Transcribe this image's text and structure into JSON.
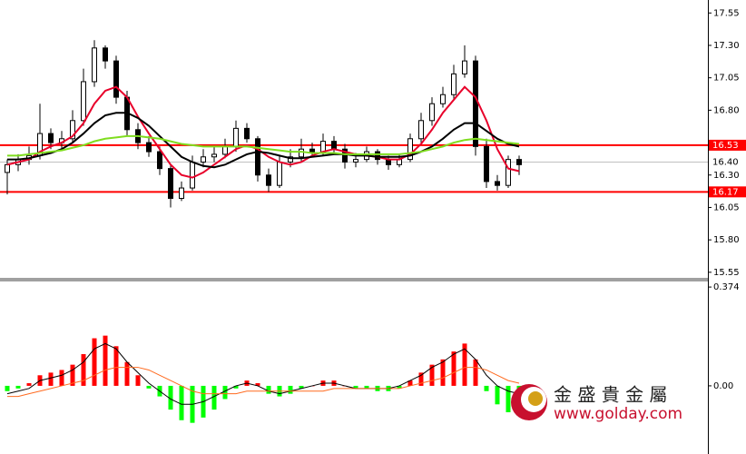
{
  "chart_data": [
    {
      "type": "candlestick",
      "open": [
        16.32,
        16.38,
        16.42,
        16.45,
        16.62,
        16.55,
        16.58,
        16.72,
        17.02,
        17.28,
        17.18,
        16.9,
        16.65,
        16.55,
        16.48,
        16.35,
        16.12,
        16.2,
        16.4,
        16.44,
        16.46,
        16.52,
        16.66,
        16.58,
        16.3,
        16.22,
        16.4,
        16.44,
        16.5,
        16.48,
        16.56,
        16.5,
        16.4,
        16.42,
        16.48,
        16.42,
        16.38,
        16.42,
        16.58,
        16.72,
        16.85,
        16.92,
        17.08,
        17.18,
        16.52,
        16.25,
        16.22,
        16.42
      ],
      "high": [
        16.42,
        16.46,
        16.52,
        16.85,
        16.66,
        16.64,
        16.8,
        17.12,
        17.34,
        17.3,
        17.22,
        16.95,
        16.7,
        16.6,
        16.52,
        16.38,
        16.25,
        16.45,
        16.5,
        16.52,
        16.58,
        16.72,
        16.7,
        16.6,
        16.35,
        16.45,
        16.5,
        16.58,
        16.55,
        16.62,
        16.6,
        16.54,
        16.47,
        16.52,
        16.5,
        16.45,
        16.46,
        16.62,
        16.78,
        16.9,
        16.98,
        17.15,
        17.3,
        17.22,
        16.58,
        16.3,
        16.45,
        16.45
      ],
      "low": [
        16.15,
        16.33,
        16.38,
        16.42,
        16.5,
        16.5,
        16.55,
        16.68,
        16.98,
        17.12,
        16.85,
        16.6,
        16.5,
        16.44,
        16.3,
        16.05,
        16.1,
        16.18,
        16.36,
        16.4,
        16.43,
        16.48,
        16.55,
        16.25,
        16.17,
        16.2,
        16.36,
        16.4,
        16.44,
        16.45,
        16.46,
        16.35,
        16.36,
        16.4,
        16.38,
        16.34,
        16.36,
        16.4,
        16.55,
        16.68,
        16.82,
        16.88,
        17.05,
        16.45,
        16.2,
        16.18,
        16.2,
        16.3
      ],
      "close": [
        16.38,
        16.42,
        16.45,
        16.62,
        16.55,
        16.58,
        16.72,
        17.02,
        17.28,
        17.18,
        16.9,
        16.65,
        16.55,
        16.48,
        16.35,
        16.12,
        16.2,
        16.4,
        16.44,
        16.46,
        16.52,
        16.66,
        16.58,
        16.3,
        16.22,
        16.4,
        16.44,
        16.5,
        16.48,
        16.56,
        16.5,
        16.4,
        16.42,
        16.48,
        16.42,
        16.38,
        16.42,
        16.58,
        16.72,
        16.85,
        16.92,
        17.08,
        17.18,
        16.52,
        16.25,
        16.22,
        16.42,
        16.38
      ],
      "up_color": "#ffffff",
      "down_color": "#000000",
      "outline_color": "#000000",
      "series": [
        {
          "color": "#e8002a",
          "values": [
            16.38,
            16.4,
            16.42,
            16.48,
            16.52,
            16.55,
            16.6,
            16.7,
            16.85,
            16.95,
            16.98,
            16.9,
            16.75,
            16.62,
            16.5,
            16.38,
            16.3,
            16.28,
            16.32,
            16.38,
            16.44,
            16.5,
            16.53,
            16.5,
            16.44,
            16.4,
            16.38,
            16.4,
            16.45,
            16.48,
            16.5,
            16.48,
            16.46,
            16.45,
            16.44,
            16.42,
            16.42,
            16.46,
            16.54,
            16.65,
            16.78,
            16.88,
            16.98,
            16.9,
            16.72,
            16.5,
            16.35,
            16.33
          ]
        },
        {
          "color": "#000000",
          "values": [
            16.42,
            16.42,
            16.43,
            16.45,
            16.47,
            16.5,
            16.55,
            16.62,
            16.7,
            16.76,
            16.78,
            16.78,
            16.74,
            16.68,
            16.6,
            16.52,
            16.44,
            16.4,
            16.37,
            16.36,
            16.38,
            16.42,
            16.46,
            16.48,
            16.47,
            16.45,
            16.43,
            16.43,
            16.44,
            16.45,
            16.46,
            16.46,
            16.45,
            16.45,
            16.44,
            16.44,
            16.44,
            16.45,
            16.48,
            16.52,
            16.58,
            16.65,
            16.7,
            16.7,
            16.64,
            16.58,
            16.54,
            16.52
          ]
        },
        {
          "color": "#7fdd1f",
          "values": [
            16.45,
            16.45,
            16.46,
            16.47,
            16.48,
            16.49,
            16.51,
            16.53,
            16.56,
            16.58,
            16.59,
            16.6,
            16.6,
            16.59,
            16.58,
            16.56,
            16.54,
            16.53,
            16.52,
            16.52,
            16.52,
            16.52,
            16.52,
            16.51,
            16.5,
            16.49,
            16.48,
            16.48,
            16.47,
            16.47,
            16.47,
            16.46,
            16.46,
            16.46,
            16.46,
            16.46,
            16.46,
            16.47,
            16.48,
            16.5,
            16.52,
            16.55,
            16.57,
            16.58,
            16.57,
            16.56,
            16.55,
            16.54
          ]
        }
      ],
      "levels": [
        {
          "value": 16.53,
          "color": "#ff0000"
        },
        {
          "value": 16.4,
          "label": "16.40",
          "color": "#c0c0c0"
        },
        {
          "value": 16.17,
          "color": "#ff0000"
        }
      ],
      "ylim": [
        15.5,
        17.65
      ],
      "yticks": [
        17.55,
        {
          "value": 17.3,
          "label": "17.30"
        },
        17.05,
        {
          "value": 16.8,
          "label": "16.80"
        },
        {
          "value": 16.3,
          "label": "16.30"
        },
        16.05,
        {
          "value": 15.8,
          "label": "15.80"
        },
        15.55
      ]
    },
    {
      "type": "macd",
      "histogram": {
        "up_color": "#ff0000",
        "down_color": "#00ff00",
        "values": [
          -0.02,
          -0.01,
          0.01,
          0.04,
          0.05,
          0.06,
          0.08,
          0.12,
          0.18,
          0.19,
          0.15,
          0.09,
          0.04,
          -0.01,
          -0.04,
          -0.09,
          -0.13,
          -0.14,
          -0.12,
          -0.09,
          -0.05,
          -0.01,
          0.02,
          0.01,
          -0.03,
          -0.04,
          -0.03,
          -0.01,
          0.0,
          0.02,
          0.02,
          0.0,
          -0.01,
          -0.01,
          -0.02,
          -0.02,
          -0.01,
          0.02,
          0.05,
          0.08,
          0.1,
          0.13,
          0.16,
          0.1,
          -0.02,
          -0.07,
          -0.1,
          -0.08
        ]
      },
      "series": [
        {
          "color": "#000000",
          "values": [
            -0.03,
            -0.02,
            -0.01,
            0.02,
            0.03,
            0.04,
            0.06,
            0.09,
            0.14,
            0.16,
            0.14,
            0.09,
            0.05,
            0.01,
            -0.02,
            -0.05,
            -0.07,
            -0.07,
            -0.06,
            -0.04,
            -0.02,
            0.0,
            0.01,
            0.0,
            -0.02,
            -0.03,
            -0.02,
            -0.01,
            0.0,
            0.01,
            0.01,
            0.0,
            -0.01,
            -0.01,
            -0.01,
            -0.01,
            0.0,
            0.02,
            0.04,
            0.07,
            0.09,
            0.12,
            0.14,
            0.1,
            0.04,
            0.0,
            -0.02,
            -0.03
          ]
        },
        {
          "color": "#ff6a1f",
          "values": [
            -0.04,
            -0.04,
            -0.03,
            -0.02,
            -0.01,
            0.0,
            0.01,
            0.02,
            0.04,
            0.06,
            0.07,
            0.07,
            0.07,
            0.06,
            0.04,
            0.02,
            0.0,
            -0.02,
            -0.03,
            -0.03,
            -0.03,
            -0.03,
            -0.02,
            -0.02,
            -0.02,
            -0.02,
            -0.02,
            -0.02,
            -0.02,
            -0.02,
            -0.01,
            -0.01,
            -0.01,
            -0.01,
            -0.01,
            -0.01,
            -0.01,
            0.0,
            0.01,
            0.02,
            0.03,
            0.05,
            0.07,
            0.07,
            0.06,
            0.04,
            0.02,
            0.01
          ]
        }
      ],
      "ylim": [
        -0.258,
        0.395
      ],
      "yticks": [
        0.374,
        {
          "value": 0,
          "label": "0.00"
        }
      ]
    }
  ],
  "watermark": {
    "name": "金 盛 貴 金 屬",
    "url": "www.golday.com"
  }
}
